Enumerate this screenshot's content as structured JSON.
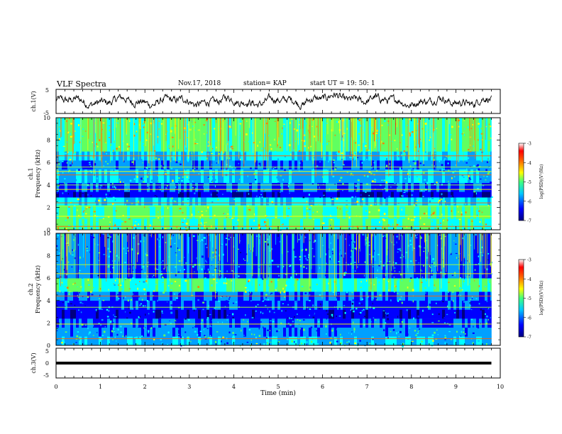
{
  "header": {
    "title": "VLF Spectra",
    "date": "Nov.17, 2018",
    "station": "station= KAP",
    "start": "start  UT =   19: 50: 1"
  },
  "colors": {
    "trace": "#000000",
    "colormap": [
      "#000080",
      "#0000ff",
      "#00a0ff",
      "#00ffff",
      "#60ff60",
      "#ffff00",
      "#ff8000",
      "#ff0000",
      "#ffffff"
    ]
  },
  "chart_data": [
    {
      "type": "line",
      "name": "ch1-waveform",
      "ylabel": "ch.1(V)",
      "ylim": [
        -5,
        5
      ],
      "yticks": [
        "5",
        "-5"
      ],
      "xlim": [
        0,
        10
      ],
      "x_extent": [
        0,
        9.8
      ],
      "description_values": "noisy waveform roughly between -2 V and +2 V"
    },
    {
      "type": "heatmap",
      "name": "ch1-spectrogram",
      "ylabel_top": "ch.1",
      "ylabel": "Frequency (kHz)",
      "ylim": [
        0,
        10
      ],
      "yticks": [
        "0",
        "2",
        "4",
        "6",
        "8",
        "10"
      ],
      "xlim": [
        0,
        10
      ],
      "x_extent": [
        0,
        9.8
      ],
      "colorbar": {
        "label": "log(PSD)(V²/Hz)",
        "range": [
          -7,
          -3
        ],
        "ticks": [
          "-3",
          "-4",
          "-5",
          "-6",
          "-7"
        ]
      },
      "bands": [
        {
          "from": 0.0,
          "to": 1.0,
          "level": -5.0
        },
        {
          "from": 1.0,
          "to": 2.2,
          "level": -4.9
        },
        {
          "from": 2.2,
          "to": 2.9,
          "level": -5.4
        },
        {
          "from": 2.9,
          "to": 3.4,
          "level": -6.4
        },
        {
          "from": 3.4,
          "to": 4.2,
          "level": -6.0
        },
        {
          "from": 4.2,
          "to": 5.4,
          "level": -5.6
        },
        {
          "from": 5.4,
          "to": 6.2,
          "level": -5.9
        },
        {
          "from": 6.2,
          "to": 7.0,
          "level": -5.5
        },
        {
          "from": 7.0,
          "to": 10.0,
          "level": -4.9
        }
      ],
      "lines_khz": [
        0.3,
        1.2,
        2.1,
        2.4,
        3.6,
        4.0,
        4.9,
        5.2,
        5.6,
        6.6
      ]
    },
    {
      "type": "heatmap",
      "name": "ch2-spectrogram",
      "ylabel_top": "ch.2",
      "ylabel": "Frequency (kHz)",
      "ylim": [
        0,
        10
      ],
      "yticks": [
        "0",
        "2",
        "4",
        "6",
        "8",
        "10"
      ],
      "xlim": [
        0,
        10
      ],
      "x_extent": [
        0,
        9.8
      ],
      "colorbar": {
        "label": "log(PSD)(V²/Hz)",
        "range": [
          -7,
          -3
        ],
        "ticks": [
          "-3",
          "-4",
          "-5",
          "-6",
          "-7"
        ]
      },
      "bands": [
        {
          "from": 0.0,
          "to": 0.8,
          "level": -5.6
        },
        {
          "from": 0.8,
          "to": 1.6,
          "level": -5.8
        },
        {
          "from": 1.6,
          "to": 2.4,
          "level": -6.0
        },
        {
          "from": 2.4,
          "to": 3.2,
          "level": -6.3
        },
        {
          "from": 3.2,
          "to": 4.0,
          "level": -6.2
        },
        {
          "from": 4.0,
          "to": 4.8,
          "level": -5.9
        },
        {
          "from": 4.8,
          "to": 6.0,
          "level": -5.0
        },
        {
          "from": 6.0,
          "to": 10.0,
          "level": -6.0
        }
      ],
      "lines_khz": [
        0.6,
        1.9,
        3.4,
        4.4,
        6.4,
        7.2
      ]
    },
    {
      "type": "line",
      "name": "ch3-waveform",
      "ylabel": "ch.3(V)",
      "ylim": [
        -5,
        5
      ],
      "yticks": [
        "5",
        "0",
        "-5"
      ],
      "xlim": [
        0,
        10
      ],
      "x_extent": [
        0,
        9.8
      ],
      "constant_value": 0,
      "xlabel": "Time  (min)",
      "xticks": [
        "0",
        "1",
        "2",
        "3",
        "4",
        "5",
        "6",
        "7",
        "8",
        "9",
        "10"
      ]
    }
  ]
}
